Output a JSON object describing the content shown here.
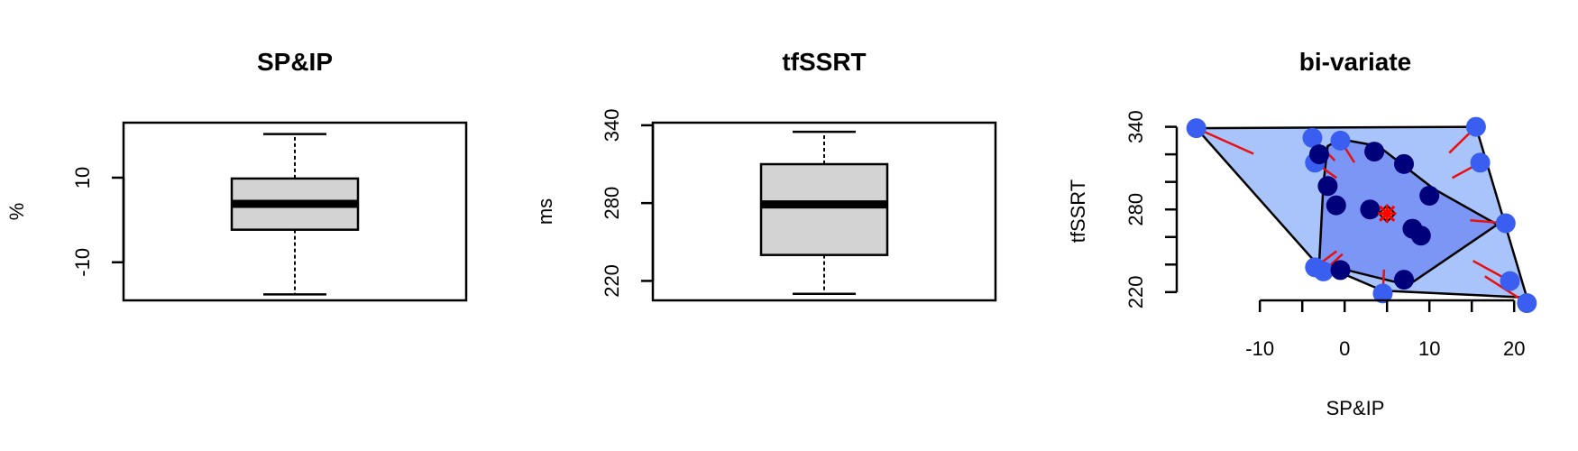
{
  "chart_data": [
    {
      "type": "boxplot",
      "title": "SP&IP",
      "ylabel": "%",
      "ylim": [
        -19,
        23
      ],
      "yticks": [
        -10,
        10
      ],
      "box": {
        "min": -17.6,
        "q1": -2.3,
        "median": 3.8,
        "q3": 9.8,
        "max": 20.3
      },
      "box_color": "#d3d3d3"
    },
    {
      "type": "boxplot",
      "title": "tfSSRT",
      "ylabel": "ms",
      "ylim": [
        205,
        342
      ],
      "yticks": [
        220,
        280,
        340
      ],
      "box": {
        "min": 210,
        "q1": 240,
        "median": 279,
        "q3": 310,
        "max": 335
      },
      "box_color": "#d3d3d3"
    },
    {
      "type": "bagplot",
      "title": "bi-variate",
      "xlabel": "SP&IP",
      "ylabel": "tfSSRT",
      "xlim": [
        -18,
        22
      ],
      "ylim": [
        214,
        343
      ],
      "xticks": [
        -10,
        0,
        10,
        20
      ],
      "yticks": [
        220,
        280,
        340
      ],
      "center": {
        "x": 5,
        "y": 277
      },
      "bag_color": "#7b96f5",
      "loop_color": "#a8c4fa",
      "inner_point_color": "#00007a",
      "outer_point_color": "#3a5ff0",
      "whisker_color": "#e81010",
      "center_color": "#ff0000",
      "loop": [
        [
          -17.5,
          339
        ],
        [
          15.5,
          340
        ],
        [
          21.5,
          216
        ],
        [
          4.5,
          221
        ],
        [
          -3.5,
          242
        ]
      ],
      "bag": [
        [
          -2,
          326
        ],
        [
          -0.5,
          331
        ],
        [
          4,
          326
        ],
        [
          10.5,
          295
        ],
        [
          18,
          269
        ],
        [
          7.5,
          225
        ],
        [
          -3,
          241
        ],
        [
          -2.5,
          299
        ]
      ],
      "inner_points": [
        [
          -3,
          320
        ],
        [
          3.5,
          322
        ],
        [
          7,
          313
        ],
        [
          -2,
          297
        ],
        [
          10,
          290
        ],
        [
          -1,
          283
        ],
        [
          3,
          280
        ],
        [
          8,
          266
        ],
        [
          9,
          261
        ],
        [
          -0.5,
          236
        ],
        [
          7,
          229
        ]
      ],
      "outer_points": [
        [
          -17.5,
          339
        ],
        [
          -3.8,
          332
        ],
        [
          -0.5,
          330
        ],
        [
          15.5,
          340
        ],
        [
          -3.5,
          314
        ],
        [
          16,
          314
        ],
        [
          19,
          270
        ],
        [
          -3.5,
          238
        ],
        [
          -2.5,
          235
        ],
        [
          4.5,
          219
        ],
        [
          19.5,
          228
        ],
        [
          21.5,
          212
        ]
      ]
    }
  ]
}
